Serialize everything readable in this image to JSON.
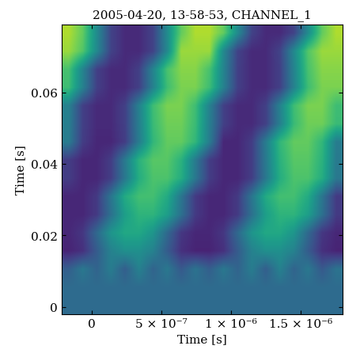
{
  "chart_data": {
    "type": "heatmap",
    "title": "2005-04-20, 13-58-53, CHANNEL_1",
    "x_label": "Time [s]",
    "y_label": "Time [s]",
    "xlim": [
      -2.2e-07,
      1.8e-06
    ],
    "ylim": [
      -0.002,
      0.079
    ],
    "xticks": [
      0,
      {
        "value": 5e-07,
        "label": "5 × 10⁻⁷"
      },
      {
        "value": 1e-06,
        "label": "1 × 10⁻⁶"
      },
      {
        "value": 1.5e-06,
        "label": "1.5 × 10⁻⁶"
      }
    ],
    "yticks": [
      0,
      0.02,
      0.04,
      0.06
    ],
    "color": "viridis",
    "value_range": [
      0,
      1
    ],
    "cells": [
      [
        0.35,
        0.35,
        0.35,
        0.35,
        0.35,
        0.35,
        0.35,
        0.35,
        0.35,
        0.35,
        0.35,
        0.35,
        0.35,
        0.35,
        0.35,
        0.35,
        0.35,
        0.35,
        0.35,
        0.35
      ],
      [
        0.35,
        0.35,
        0.35,
        0.35,
        0.35,
        0.35,
        0.35,
        0.35,
        0.35,
        0.35,
        0.35,
        0.35,
        0.35,
        0.35,
        0.35,
        0.35,
        0.35,
        0.35,
        0.35,
        0.35
      ],
      [
        0.3,
        0.4,
        0.32,
        0.42,
        0.3,
        0.44,
        0.32,
        0.4,
        0.28,
        0.38,
        0.3,
        0.4,
        0.32,
        0.42,
        0.3,
        0.44,
        0.32,
        0.4,
        0.28,
        0.38
      ],
      [
        0.1,
        0.14,
        0.29,
        0.44,
        0.5,
        0.5,
        0.44,
        0.29,
        0.14,
        0.1,
        0.1,
        0.14,
        0.29,
        0.44,
        0.5,
        0.5,
        0.44,
        0.29,
        0.14,
        0.1
      ],
      [
        0.11,
        0.16,
        0.34,
        0.52,
        0.6,
        0.6,
        0.52,
        0.34,
        0.16,
        0.11,
        0.11,
        0.16,
        0.34,
        0.52,
        0.6,
        0.6,
        0.52,
        0.34,
        0.16,
        0.11
      ],
      [
        0.11,
        0.11,
        0.17,
        0.37,
        0.56,
        0.65,
        0.65,
        0.56,
        0.37,
        0.17,
        0.11,
        0.11,
        0.17,
        0.37,
        0.56,
        0.65,
        0.65,
        0.56,
        0.37,
        0.17
      ],
      [
        0.11,
        0.11,
        0.17,
        0.39,
        0.61,
        0.7,
        0.7,
        0.61,
        0.39,
        0.17,
        0.11,
        0.11,
        0.17,
        0.39,
        0.61,
        0.7,
        0.7,
        0.61,
        0.39,
        0.17
      ],
      [
        0.18,
        0.11,
        0.11,
        0.18,
        0.4,
        0.62,
        0.72,
        0.72,
        0.62,
        0.4,
        0.18,
        0.11,
        0.11,
        0.18,
        0.4,
        0.62,
        0.72,
        0.72,
        0.62,
        0.4
      ],
      [
        0.18,
        0.11,
        0.11,
        0.18,
        0.41,
        0.64,
        0.74,
        0.74,
        0.64,
        0.41,
        0.18,
        0.11,
        0.11,
        0.18,
        0.41,
        0.64,
        0.74,
        0.74,
        0.64,
        0.41
      ],
      [
        0.42,
        0.18,
        0.11,
        0.11,
        0.18,
        0.42,
        0.66,
        0.76,
        0.76,
        0.66,
        0.42,
        0.11,
        0.11,
        0.18,
        0.42,
        0.66,
        0.76,
        0.76,
        0.66,
        0.42
      ],
      [
        0.43,
        0.19,
        0.12,
        0.12,
        0.19,
        0.43,
        0.68,
        0.78,
        0.78,
        0.68,
        0.43,
        0.19,
        0.12,
        0.12,
        0.19,
        0.43,
        0.68,
        0.78,
        0.78,
        0.68
      ],
      [
        0.44,
        0.19,
        0.12,
        0.12,
        0.19,
        0.44,
        0.69,
        0.8,
        0.8,
        0.69,
        0.44,
        0.19,
        0.12,
        0.12,
        0.19,
        0.44,
        0.69,
        0.8,
        0.8,
        0.69
      ],
      [
        0.69,
        0.44,
        0.19,
        0.12,
        0.12,
        0.19,
        0.44,
        0.69,
        0.8,
        0.8,
        0.69,
        0.44,
        0.19,
        0.12,
        0.12,
        0.19,
        0.44,
        0.69,
        0.8,
        0.8
      ],
      [
        0.71,
        0.45,
        0.19,
        0.12,
        0.12,
        0.19,
        0.45,
        0.71,
        0.82,
        0.82,
        0.71,
        0.45,
        0.19,
        0.12,
        0.12,
        0.19,
        0.45,
        0.71,
        0.82,
        0.82
      ],
      [
        0.85,
        0.73,
        0.47,
        0.2,
        0.12,
        0.12,
        0.2,
        0.47,
        0.85,
        0.85,
        0.85,
        0.47,
        0.2,
        0.12,
        0.12,
        0.2,
        0.47,
        0.73,
        0.85,
        0.85
      ],
      [
        0.88,
        0.76,
        0.48,
        0.2,
        0.12,
        0.12,
        0.2,
        0.48,
        0.76,
        0.88,
        0.88,
        0.76,
        0.48,
        0.2,
        0.12,
        0.12,
        0.2,
        0.48,
        0.76,
        0.88
      ]
    ]
  }
}
